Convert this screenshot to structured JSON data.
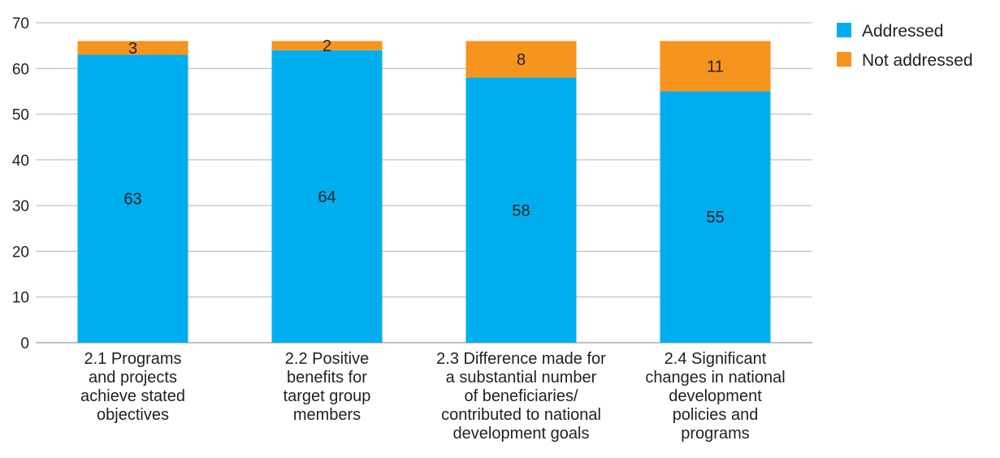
{
  "chart_data": {
    "type": "bar",
    "stacked": true,
    "categories": [
      [
        "2.1 Programs",
        "and projects",
        "achieve stated",
        "objectives"
      ],
      [
        "2.2 Positive",
        "benefits for",
        "target group",
        "members"
      ],
      [
        "2.3 Difference made for",
        "a substantial number",
        "of beneficiaries/",
        "contributed to national",
        "development goals"
      ],
      [
        "2.4 Significant",
        "changes in national",
        "development",
        "policies and",
        "programs"
      ]
    ],
    "series": [
      {
        "name": "Addressed",
        "color": "#00aeef",
        "values": [
          63,
          64,
          58,
          55
        ]
      },
      {
        "name": "Not addressed",
        "color": "#f7941d",
        "values": [
          3,
          2,
          8,
          11
        ]
      }
    ],
    "ylim": [
      0,
      70
    ],
    "yticks": [
      0,
      10,
      20,
      30,
      40,
      50,
      60,
      70
    ],
    "grid": true,
    "legend": "top-right"
  }
}
